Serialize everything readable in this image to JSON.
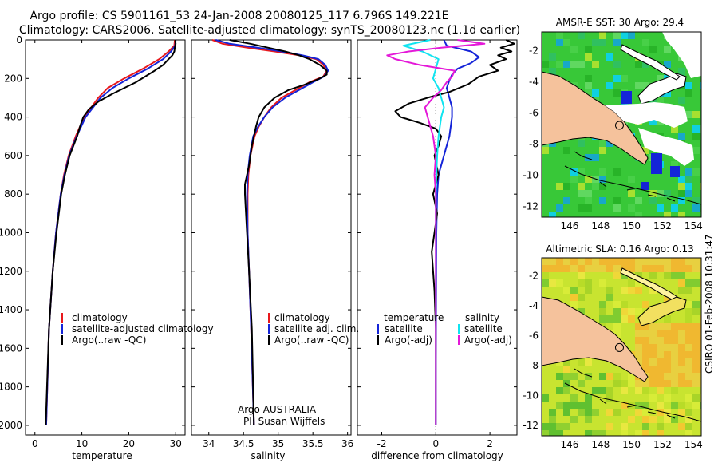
{
  "header": {
    "title_line1": "Argo profile: CS 5901161_53 24-Jan-2008 20080125_117 6.796S 149.221E",
    "title_line2": "Climatology: CARS2006. Satellite-adjusted climatology: synTS_20080123.nc (1.1d earlier)"
  },
  "colors": {
    "climatology": "#e8181c",
    "satellite": "#1424d8",
    "argo": "#000000",
    "salinity_satellite": "#10e4f0",
    "salinity_argo": "#e418d8",
    "land": "#f5c29c"
  },
  "chart_data": [
    {
      "type": "line",
      "id": "temperature",
      "xlabel": "temperature",
      "ylabel": "",
      "xlim": [
        -2,
        32
      ],
      "ylim": [
        2050,
        0
      ],
      "x_ticks": [
        0,
        10,
        20,
        30
      ],
      "y_ticks": [
        0,
        200,
        400,
        600,
        800,
        1000,
        1200,
        1400,
        1600,
        1800,
        2000
      ],
      "legend": [
        "climatology",
        "satellite-adjusted climatology",
        "Argo(..raw -QC)"
      ],
      "series": [
        {
          "name": "climatology",
          "color": "climatology",
          "depth": [
            0,
            30,
            60,
            100,
            150,
            200,
            250,
            300,
            400,
            500,
            600,
            700,
            800,
            1000,
            1200,
            1500,
            2000
          ],
          "values": [
            29.8,
            29.7,
            28.5,
            26.5,
            23.0,
            19.0,
            15.5,
            13.5,
            10.5,
            8.7,
            7.2,
            6.2,
            5.5,
            4.5,
            3.8,
            3.0,
            2.4
          ]
        },
        {
          "name": "satellite-adjusted climatology",
          "color": "satellite",
          "depth": [
            0,
            30,
            60,
            100,
            150,
            200,
            250,
            300,
            400,
            500,
            600,
            700,
            800,
            1000,
            1200,
            1500,
            2000
          ],
          "values": [
            30.0,
            29.9,
            29.0,
            27.3,
            24.0,
            20.0,
            16.5,
            14.0,
            10.8,
            8.9,
            7.3,
            6.3,
            5.5,
            4.5,
            3.8,
            3.0,
            2.4
          ]
        },
        {
          "name": "Argo(..raw -QC)",
          "color": "argo",
          "depth": [
            0,
            20,
            40,
            60,
            80,
            100,
            130,
            160,
            190,
            220,
            250,
            280,
            320,
            360,
            400,
            450,
            500,
            550,
            600,
            700,
            800,
            1000,
            1200,
            1500,
            2000
          ],
          "values": [
            29.9,
            30.0,
            29.8,
            29.7,
            29.3,
            28.5,
            27.3,
            25.5,
            23.5,
            21.5,
            19.0,
            16.5,
            13.5,
            11.5,
            10.3,
            9.6,
            9.0,
            8.2,
            7.4,
            6.4,
            5.6,
            4.6,
            3.8,
            3.0,
            2.3
          ]
        }
      ]
    },
    {
      "type": "line",
      "id": "salinity",
      "xlabel": "salinity",
      "xlim": [
        33.75,
        36.05
      ],
      "ylim": [
        2050,
        0
      ],
      "x_ticks": [
        34,
        34.5,
        35,
        35.5,
        36
      ],
      "legend": [
        "climatology",
        "satellite adj. clim.",
        "Argo(..raw -QC)"
      ],
      "annotation": [
        "Argo AUSTRALIA",
        "PI: Susan Wijffels"
      ],
      "series": [
        {
          "name": "climatology",
          "color": "climatology",
          "depth": [
            0,
            20,
            40,
            60,
            80,
            100,
            130,
            160,
            190,
            220,
            260,
            300,
            350,
            400,
            450,
            500,
            600,
            700,
            800,
            1000,
            1200,
            1500,
            2000
          ],
          "values": [
            34.05,
            34.2,
            34.55,
            34.95,
            35.3,
            35.55,
            35.65,
            35.7,
            35.65,
            35.45,
            35.25,
            35.05,
            34.9,
            34.8,
            34.72,
            34.66,
            34.6,
            34.57,
            34.56,
            34.56,
            34.58,
            34.61,
            34.65
          ]
        },
        {
          "name": "satellite adj. clim.",
          "color": "satellite",
          "depth": [
            0,
            20,
            40,
            60,
            80,
            100,
            130,
            160,
            190,
            220,
            260,
            300,
            350,
            400,
            450,
            500,
            600,
            700,
            800,
            1000,
            1200,
            1500,
            2000
          ],
          "values": [
            34.1,
            34.3,
            34.7,
            35.05,
            35.35,
            35.58,
            35.68,
            35.72,
            35.66,
            35.5,
            35.3,
            35.1,
            34.92,
            34.8,
            34.71,
            34.64,
            34.59,
            34.56,
            34.55,
            34.56,
            34.58,
            34.61,
            34.65
          ]
        },
        {
          "name": "Argo(..raw -QC)",
          "color": "argo",
          "depth": [
            0,
            20,
            40,
            60,
            80,
            100,
            130,
            160,
            180,
            200,
            230,
            260,
            300,
            350,
            400,
            450,
            500,
            550,
            600,
            650,
            700,
            750,
            800,
            1000,
            1200,
            1500,
            2000
          ],
          "values": [
            34.3,
            34.6,
            34.85,
            35.1,
            35.3,
            35.45,
            35.6,
            35.7,
            35.7,
            35.6,
            35.4,
            35.15,
            34.95,
            34.8,
            34.72,
            34.68,
            34.65,
            34.62,
            34.6,
            34.58,
            34.55,
            34.52,
            34.52,
            34.55,
            34.58,
            34.62,
            34.65
          ]
        }
      ]
    },
    {
      "type": "line",
      "id": "difference",
      "xlabel": "difference from climatology",
      "xlim": [
        -2.9,
        3.0
      ],
      "ylim": [
        2050,
        0
      ],
      "x_ticks": [
        -2,
        0,
        2
      ],
      "legend_headers": [
        "temperature",
        "salinity"
      ],
      "legend": [
        "satellite",
        "Argo(-adj)",
        "satellite",
        "Argo(-adj)"
      ],
      "series": [
        {
          "name": "temperature satellite",
          "color": "satellite",
          "depth": [
            0,
            30,
            60,
            90,
            120,
            150,
            180,
            210,
            250,
            300,
            350,
            400,
            500,
            600,
            700,
            800,
            1000,
            1500,
            2000
          ],
          "values": [
            0.3,
            0.4,
            1.3,
            1.6,
            1.3,
            0.8,
            0.6,
            0.5,
            0.4,
            0.5,
            0.6,
            0.6,
            0.5,
            0.3,
            0.1,
            0.05,
            0.02,
            0.01,
            0.0
          ]
        },
        {
          "name": "temperature Argo(-adj)",
          "color": "argo",
          "depth": [
            0,
            20,
            40,
            60,
            80,
            100,
            130,
            160,
            190,
            230,
            270,
            300,
            330,
            370,
            400,
            430,
            460,
            500,
            550,
            600,
            700,
            800,
            900,
            1000,
            1100,
            1200,
            1300,
            1500,
            2000
          ],
          "values": [
            2.6,
            2.9,
            2.4,
            2.8,
            2.3,
            2.6,
            2.0,
            2.3,
            1.6,
            1.2,
            0.5,
            -0.3,
            -1.0,
            -1.5,
            -1.3,
            -0.6,
            0.0,
            0.2,
            0.1,
            -0.05,
            0.1,
            -0.1,
            0.05,
            -0.05,
            -0.15,
            -0.1,
            -0.05,
            0.0,
            0.0
          ]
        },
        {
          "name": "salinity satellite",
          "color": "salinity_satellite",
          "depth": [
            0,
            30,
            60,
            100,
            150,
            200,
            250,
            300,
            350,
            400,
            500,
            600,
            700,
            800,
            1000,
            1500,
            2000
          ],
          "values": [
            -0.2,
            -1.2,
            -0.5,
            0.1,
            0.0,
            -0.1,
            0.1,
            0.2,
            0.3,
            0.2,
            0.1,
            0.05,
            0.02,
            0.0,
            0.0,
            0.0,
            0.0
          ]
        },
        {
          "name": "salinity Argo(-adj)",
          "color": "salinity_argo",
          "depth": [
            0,
            20,
            40,
            60,
            80,
            100,
            130,
            160,
            190,
            220,
            260,
            300,
            350,
            400,
            450,
            500,
            600,
            700,
            800,
            1000,
            1500,
            2000
          ],
          "values": [
            0.8,
            1.8,
            0.2,
            -1.0,
            -1.8,
            -1.5,
            -0.6,
            0.7,
            0.6,
            0.4,
            0.2,
            -0.1,
            -0.4,
            -0.3,
            -0.2,
            -0.1,
            0.0,
            -0.05,
            0.0,
            0.0,
            0.0,
            0.0
          ]
        }
      ]
    },
    {
      "type": "heatmap",
      "id": "sst_map",
      "title": "AMSR-E SST: 30 Argo: 29.4",
      "xlim": [
        144.2,
        154.5
      ],
      "ylim": [
        -12.7,
        -0.8
      ],
      "x_ticks": [
        146,
        148,
        150,
        152,
        154
      ],
      "y_ticks": [
        -2,
        -4,
        -6,
        -8,
        -10,
        -12
      ],
      "profile_location": [
        149.22,
        -6.8
      ]
    },
    {
      "type": "heatmap",
      "id": "sla_map",
      "title": "Altimetric SLA: 0.16 Argo: 0.13",
      "xlim": [
        144.2,
        154.5
      ],
      "ylim": [
        -12.7,
        -0.8
      ],
      "x_ticks": [
        146,
        148,
        150,
        152,
        154
      ],
      "y_ticks": [
        -2,
        -4,
        -6,
        -8,
        -10,
        -12
      ],
      "profile_location": [
        149.22,
        -6.8
      ]
    }
  ],
  "footer": {
    "side_stamp": "CSIRO 01-Feb-2008 10:31:47"
  }
}
